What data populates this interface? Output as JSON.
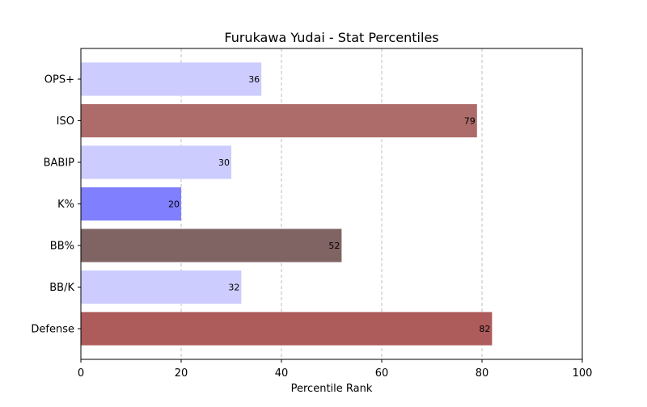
{
  "chart_data": {
    "type": "bar",
    "orientation": "horizontal",
    "title": "Furukawa Yudai - Stat Percentiles",
    "xlabel": "Percentile Rank",
    "ylabel": "",
    "xlim": [
      0,
      100
    ],
    "xticks": [
      0,
      20,
      40,
      60,
      80,
      100
    ],
    "grid": "x-dashed",
    "categories": [
      "OPS+",
      "ISO",
      "BABIP",
      "K%",
      "BB%",
      "BB/K",
      "Defense"
    ],
    "values": [
      36,
      79,
      30,
      20,
      52,
      32,
      82
    ],
    "colors": [
      "#ccccff",
      "#ad6c6a",
      "#ccccff",
      "#8080ff",
      "#806464",
      "#ccccff",
      "#ad5b5b"
    ]
  }
}
